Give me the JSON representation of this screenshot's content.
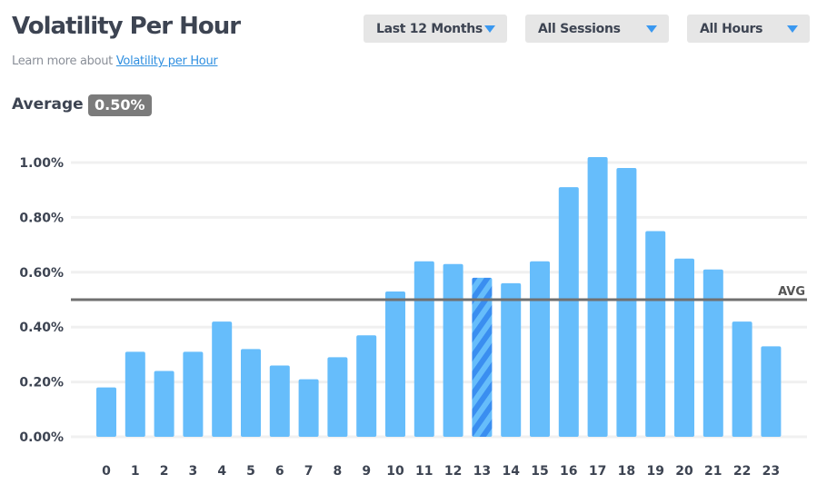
{
  "header": {
    "title": "Volatility Per Hour",
    "learn_prefix": "Learn more about",
    "learn_link": "Volatility per Hour"
  },
  "filters": {
    "period": "Last 12 Months",
    "session": "All Sessions",
    "hours": "All Hours"
  },
  "average": {
    "label": "Average",
    "value": "0.50%"
  },
  "colors": {
    "bar": "#66bdfb",
    "highlight_bar": "#3a8ef0",
    "avg_line": "#707070",
    "grid": "#f0f0f0"
  },
  "chart_data": {
    "type": "bar",
    "categories": [
      "0",
      "1",
      "2",
      "3",
      "4",
      "5",
      "6",
      "7",
      "8",
      "9",
      "10",
      "11",
      "12",
      "13",
      "14",
      "15",
      "16",
      "17",
      "18",
      "19",
      "20",
      "21",
      "22",
      "23"
    ],
    "values": [
      0.18,
      0.31,
      0.24,
      0.31,
      0.42,
      0.32,
      0.26,
      0.21,
      0.29,
      0.37,
      0.53,
      0.64,
      0.63,
      0.58,
      0.56,
      0.64,
      0.91,
      1.02,
      0.98,
      0.75,
      0.65,
      0.61,
      0.42,
      0.33
    ],
    "value_format": "percent",
    "ylim": [
      0,
      1.0
    ],
    "yticks": [
      "0.00%",
      "0.20%",
      "0.40%",
      "0.60%",
      "0.80%",
      "1.00%"
    ],
    "ytick_values": [
      0,
      0.2,
      0.4,
      0.6,
      0.8,
      1.0
    ],
    "average": 0.5,
    "average_label": "AVG",
    "highlighted_category": "13",
    "grid": true,
    "xlabel": "",
    "ylabel": ""
  }
}
